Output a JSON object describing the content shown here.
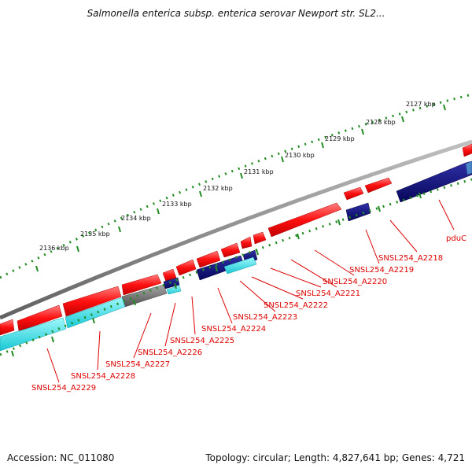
{
  "title": "Salmonella enterica subsp. enterica serovar Newport str. SL2...",
  "footer": {
    "accession": "Accession: NC_011080",
    "topology": "Topology: circular; Length: 4,827,641 bp; Genes: 4,721"
  },
  "scale_ticks": [
    "2127 kbp",
    "2128 kbp",
    "2129 kbp",
    "2130 kbp",
    "2131 kbp",
    "2132 kbp",
    "2133 kbp",
    "2134 kbp",
    "2135 kbp",
    "2136 kbp"
  ],
  "genes": [
    "pduC",
    "SNSL254_A2218",
    "SNSL254_A2219",
    "SNSL254_A2220",
    "SNSL254_A2221",
    "SNSL254_A2222",
    "SNSL254_A2223",
    "SNSL254_A2224",
    "SNSL254_A2225",
    "SNSL254_A2226",
    "SNSL254_A2227",
    "SNSL254_A2228",
    "SNSL254_A2229"
  ],
  "colors": {
    "backbone": "#808080",
    "forward_gene": "#ff0000",
    "reverse_gene_navy": "#0a0a80",
    "reverse_gene_cyan": "#33e0e8",
    "other_gene": "#707070",
    "scale_tick": "#228b22",
    "label": "#dd0000"
  }
}
